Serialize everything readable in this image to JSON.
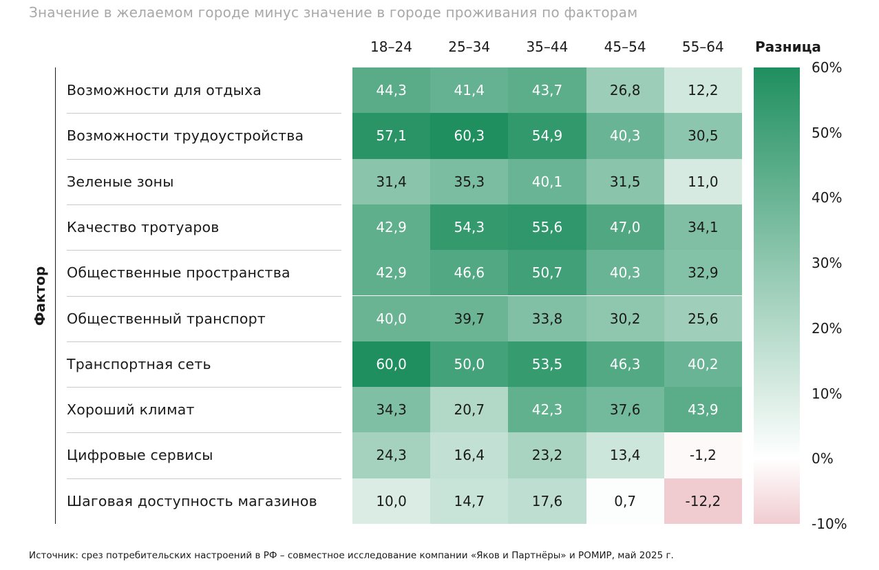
{
  "chart_data": {
    "type": "heatmap",
    "title": "Значение в желаемом городе минус значение в городе проживания по факторам",
    "ylabel": "Фактор",
    "columns": [
      "18–24",
      "25–34",
      "35–44",
      "45–54",
      "55–64"
    ],
    "rows": [
      {
        "label": "Возможности для отдыха",
        "values": [
          44.3,
          41.4,
          43.7,
          26.8,
          12.2
        ],
        "display": [
          "44,3",
          "41,4",
          "43,7",
          "26,8",
          "12,2"
        ]
      },
      {
        "label": "Возможности трудоустройства",
        "values": [
          57.1,
          60.3,
          54.9,
          40.3,
          30.5
        ],
        "display": [
          "57,1",
          "60,3",
          "54,9",
          "40,3",
          "30,5"
        ]
      },
      {
        "label": "Зеленые зоны",
        "values": [
          31.4,
          35.3,
          40.1,
          31.5,
          11.0
        ],
        "display": [
          "31,4",
          "35,3",
          "40,1",
          "31,5",
          "11,0"
        ]
      },
      {
        "label": "Качество тротуаров",
        "values": [
          42.9,
          54.3,
          55.6,
          47.0,
          34.1
        ],
        "display": [
          "42,9",
          "54,3",
          "55,6",
          "47,0",
          "34,1"
        ]
      },
      {
        "label": "Общественные пространства",
        "values": [
          42.9,
          46.6,
          50.7,
          40.3,
          32.9
        ],
        "display": [
          "42,9",
          "46,6",
          "50,7",
          "40,3",
          "32,9"
        ]
      },
      {
        "label": "Общественный транспорт",
        "values": [
          40.0,
          39.7,
          33.8,
          30.2,
          25.6
        ],
        "display": [
          "40,0",
          "39,7",
          "33,8",
          "30,2",
          "25,6"
        ]
      },
      {
        "label": "Транспортная сеть",
        "values": [
          60.0,
          50.0,
          53.5,
          46.3,
          40.2
        ],
        "display": [
          "60,0",
          "50,0",
          "53,5",
          "46,3",
          "40,2"
        ]
      },
      {
        "label": "Хороший климат",
        "values": [
          34.3,
          20.7,
          42.3,
          37.6,
          43.9
        ],
        "display": [
          "34,3",
          "20,7",
          "42,3",
          "37,6",
          "43,9"
        ]
      },
      {
        "label": "Цифровые сервисы",
        "values": [
          24.3,
          16.4,
          23.2,
          13.4,
          -1.2
        ],
        "display": [
          "24,3",
          "16,4",
          "23,2",
          "13,4",
          "-1,2"
        ]
      },
      {
        "label": "Шаговая доступность магазинов",
        "values": [
          10.0,
          14.7,
          17.6,
          0.7,
          -12.2
        ],
        "display": [
          "10,0",
          "14,7",
          "17,6",
          "0,7",
          "-12,2"
        ]
      }
    ],
    "colorbar": {
      "title": "Разница",
      "range": [
        -10,
        60
      ],
      "ticks": [
        "60%",
        "50%",
        "40%",
        "30%",
        "20%",
        "10%",
        "0%",
        "-10%"
      ],
      "tick_values": [
        60,
        50,
        40,
        30,
        20,
        10,
        0,
        -10
      ],
      "colors": {
        "max": "#1f8f5f",
        "mid": "#ffffff",
        "min": "#f0ccd0"
      }
    }
  },
  "footer": "Источник: срез потребительских настроений в РФ – совместное исследование компании «Яков и Партнёры» и РОМИР, май 2025 г."
}
